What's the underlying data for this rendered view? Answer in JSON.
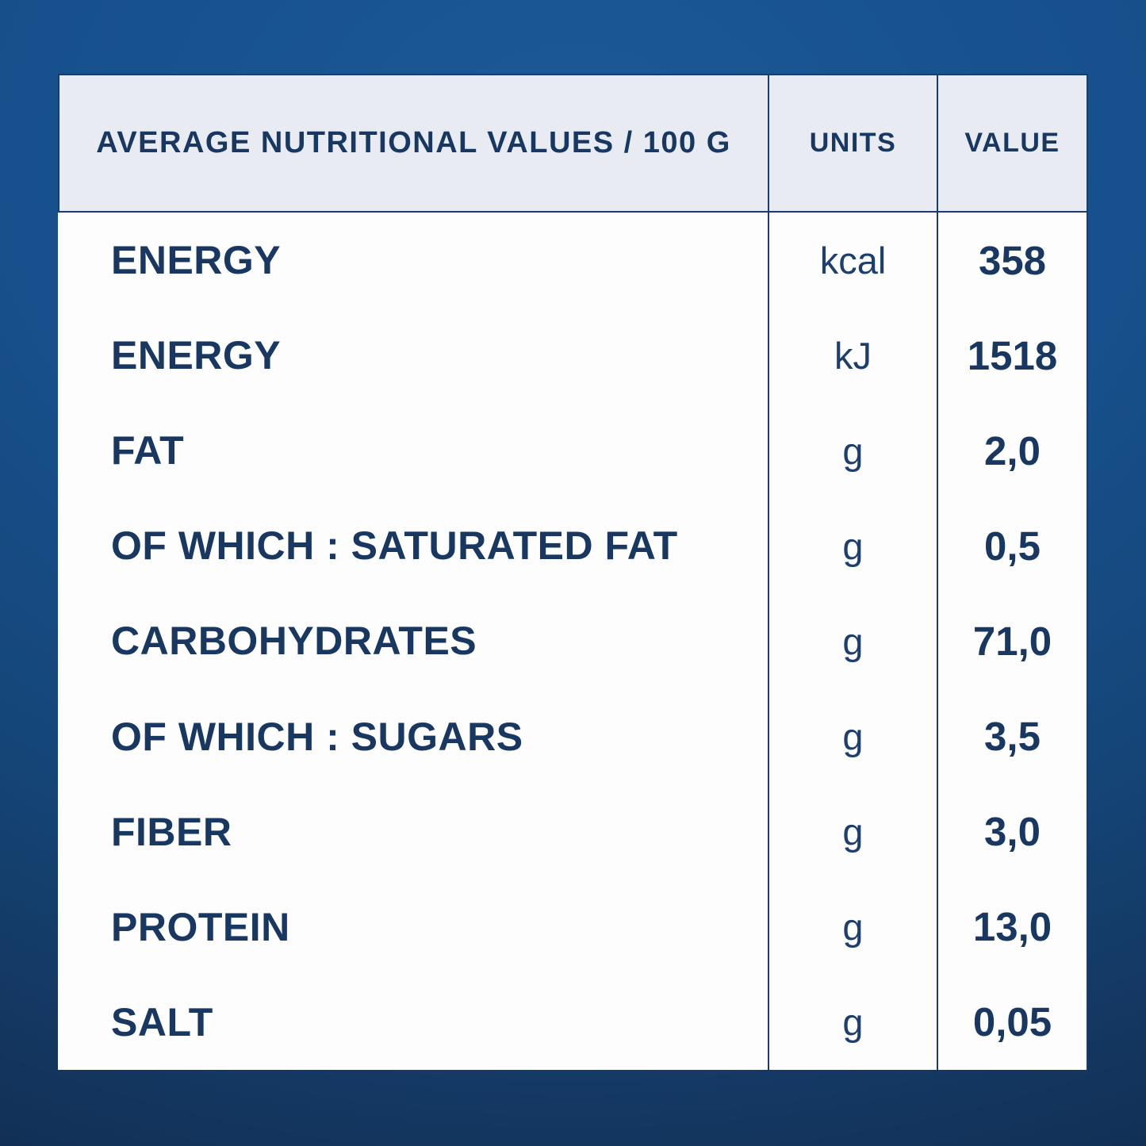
{
  "table": {
    "header": {
      "nutrients_label": "AVERAGE NUTRITIONAL VALUES / 100 G",
      "units_label": "UNITS",
      "value_label": "VALUE"
    },
    "rows": [
      {
        "label": "ENERGY",
        "unit": "kcal",
        "value": "358"
      },
      {
        "label": "ENERGY",
        "unit": "kJ",
        "value": "1518"
      },
      {
        "label": "FAT",
        "unit": "g",
        "value": "2,0"
      },
      {
        "label": "OF WHICH : SATURATED FAT",
        "unit": "g",
        "value": "0,5"
      },
      {
        "label": "CARBOHYDRATES",
        "unit": "g",
        "value": "71,0"
      },
      {
        "label": "OF WHICH : SUGARS",
        "unit": "g",
        "value": "3,5"
      },
      {
        "label": "FIBER",
        "unit": "g",
        "value": "3,0"
      },
      {
        "label": "PROTEIN",
        "unit": "g",
        "value": "13,0"
      },
      {
        "label": "SALT",
        "unit": "g",
        "value": "0,05"
      }
    ],
    "colors": {
      "text_navy": "#183862",
      "grid_navy": "#1c3c69",
      "header_bg": "#e8ebf1",
      "body_bg": "#fdfdfe",
      "background_top": "#1b5996",
      "background_bottom": "#122c4f"
    }
  }
}
